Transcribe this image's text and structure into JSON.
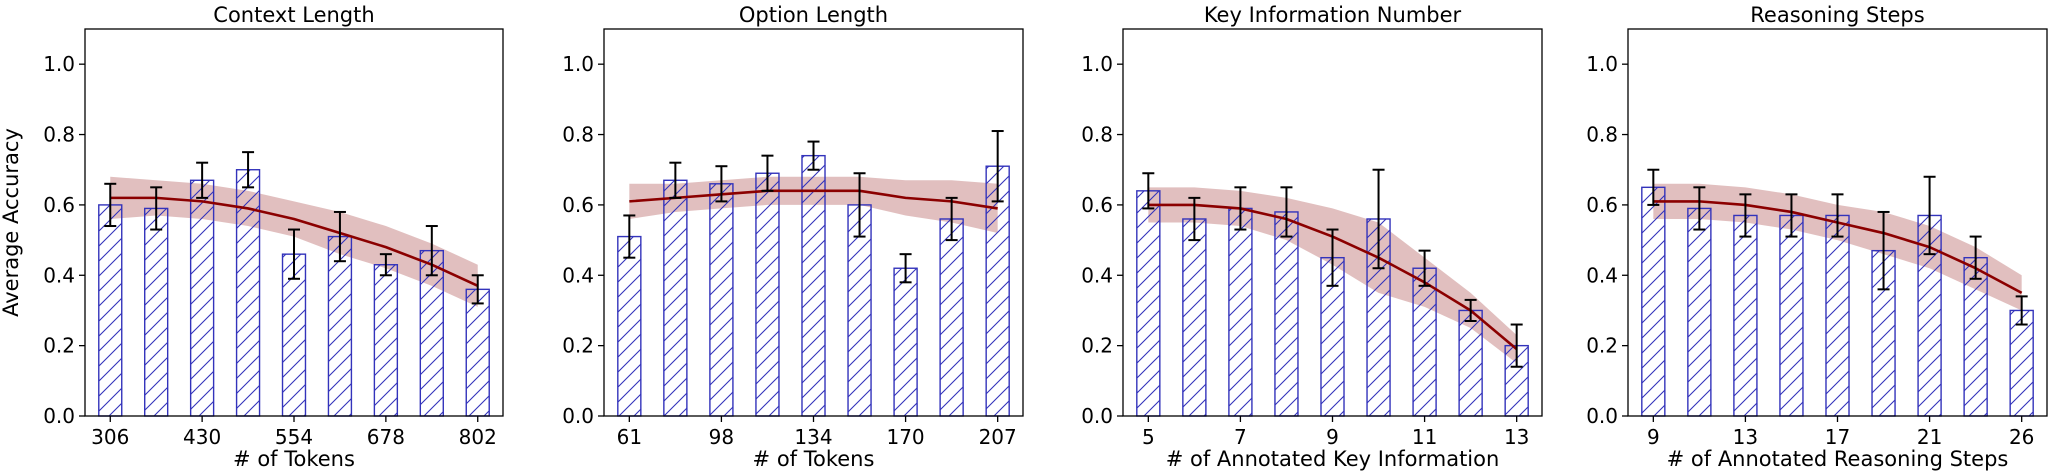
{
  "chart_data": [
    {
      "type": "bar",
      "title": "Context Length",
      "xlabel": "# of Tokens",
      "ylabel": "Average Accuracy",
      "ylim": [
        0,
        1.1
      ],
      "yticks": [
        "0.0",
        "0.2",
        "0.4",
        "0.6",
        "0.8",
        "1.0"
      ],
      "xtick_labels": [
        "306",
        "430",
        "554",
        "678",
        "802"
      ],
      "xtick_positions": [
        0,
        2,
        4,
        6,
        8
      ],
      "values": [
        0.6,
        0.59,
        0.67,
        0.7,
        0.46,
        0.51,
        0.43,
        0.47,
        0.36
      ],
      "errors": [
        0.06,
        0.06,
        0.05,
        0.05,
        0.07,
        0.07,
        0.03,
        0.07,
        0.04
      ],
      "trend": [
        0.62,
        0.62,
        0.61,
        0.59,
        0.56,
        0.52,
        0.48,
        0.43,
        0.37
      ],
      "band": [
        0.06,
        0.05,
        0.05,
        0.05,
        0.05,
        0.06,
        0.06,
        0.06,
        0.06
      ],
      "grid": false
    },
    {
      "type": "bar",
      "title": "Option Length",
      "xlabel": "# of Tokens",
      "ylabel": "",
      "ylim": [
        0,
        1.1
      ],
      "yticks": [
        "0.0",
        "0.2",
        "0.4",
        "0.6",
        "0.8",
        "1.0"
      ],
      "xtick_labels": [
        "61",
        "98",
        "134",
        "170",
        "207"
      ],
      "xtick_positions": [
        0,
        2,
        4,
        6,
        8
      ],
      "values": [
        0.51,
        0.67,
        0.66,
        0.69,
        0.74,
        0.6,
        0.42,
        0.56,
        0.71
      ],
      "errors": [
        0.06,
        0.05,
        0.05,
        0.05,
        0.04,
        0.09,
        0.04,
        0.06,
        0.1
      ],
      "trend": [
        0.61,
        0.62,
        0.63,
        0.64,
        0.64,
        0.64,
        0.62,
        0.61,
        0.59
      ],
      "band": [
        0.05,
        0.04,
        0.04,
        0.04,
        0.04,
        0.04,
        0.05,
        0.06,
        0.07
      ],
      "grid": false
    },
    {
      "type": "bar",
      "title": "Key Information Number",
      "xlabel": "# of Annotated Key Information",
      "ylabel": "",
      "ylim": [
        0,
        1.1
      ],
      "yticks": [
        "0.0",
        "0.2",
        "0.4",
        "0.6",
        "0.8",
        "1.0"
      ],
      "xtick_labels": [
        "5",
        "7",
        "9",
        "11",
        "13"
      ],
      "xtick_positions": [
        0,
        2,
        4,
        6,
        8
      ],
      "values": [
        0.64,
        0.56,
        0.59,
        0.58,
        0.45,
        0.56,
        0.42,
        0.3,
        0.2
      ],
      "errors": [
        0.05,
        0.06,
        0.06,
        0.07,
        0.08,
        0.14,
        0.05,
        0.03,
        0.06
      ],
      "trend": [
        0.6,
        0.6,
        0.59,
        0.56,
        0.51,
        0.45,
        0.38,
        0.3,
        0.19
      ],
      "band": [
        0.05,
        0.05,
        0.05,
        0.06,
        0.08,
        0.1,
        0.07,
        0.05,
        0.04
      ],
      "grid": false
    },
    {
      "type": "bar",
      "title": "Reasoning Steps",
      "xlabel": "# of Annotated Reasoning Steps",
      "ylabel": "",
      "ylim": [
        0,
        1.1
      ],
      "yticks": [
        "0.0",
        "0.2",
        "0.4",
        "0.6",
        "0.8",
        "1.0"
      ],
      "xtick_labels": [
        "9",
        "13",
        "17",
        "21",
        "26"
      ],
      "xtick_positions": [
        0,
        2,
        4,
        6,
        8
      ],
      "values": [
        0.65,
        0.59,
        0.57,
        0.57,
        0.57,
        0.47,
        0.57,
        0.45,
        0.3
      ],
      "errors": [
        0.05,
        0.06,
        0.06,
        0.06,
        0.06,
        0.11,
        0.11,
        0.06,
        0.04
      ],
      "trend": [
        0.61,
        0.61,
        0.6,
        0.58,
        0.55,
        0.52,
        0.48,
        0.42,
        0.35
      ],
      "band": [
        0.05,
        0.05,
        0.05,
        0.05,
        0.05,
        0.06,
        0.06,
        0.06,
        0.05
      ],
      "grid": false
    }
  ],
  "colors": {
    "bar_edge": "#3333bb",
    "hatch": "#3333bb",
    "trend": "#8b0000",
    "band": "#c88a8a",
    "error": "#000000",
    "axis": "#000000"
  }
}
